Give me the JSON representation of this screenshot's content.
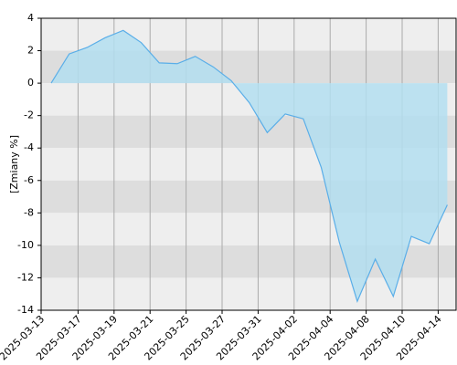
{
  "chart_data": {
    "type": "area",
    "y_label": "[Zmiany %]",
    "categories": [
      "2025-03-13",
      null,
      "2025-03-17",
      null,
      "2025-03-19",
      null,
      "2025-03-21",
      null,
      "2025-03-25",
      null,
      "2025-03-27",
      null,
      "2025-03-31",
      null,
      "2025-04-02",
      null,
      "2025-04-04",
      null,
      "2025-04-08",
      null,
      "2025-04-10",
      null,
      "2025-04-14"
    ],
    "values": [
      0,
      1.8,
      2.2,
      2.8,
      3.25,
      2.5,
      1.25,
      1.2,
      1.65,
      1.0,
      0.15,
      -1.2,
      -3.05,
      -1.9,
      -2.2,
      -5.2,
      -9.8,
      -13.45,
      -10.85,
      -13.15,
      -9.45,
      -9.9,
      -7.5
    ],
    "color": "#5aaee8",
    "fill": "#b3def0",
    "ylim": [
      -14,
      4
    ],
    "yticks": [
      4,
      2,
      0,
      -2,
      -4,
      -6,
      -8,
      -10,
      -12,
      -14
    ],
    "band_colors": [
      "#eeeeee",
      "#dddddd"
    ]
  }
}
